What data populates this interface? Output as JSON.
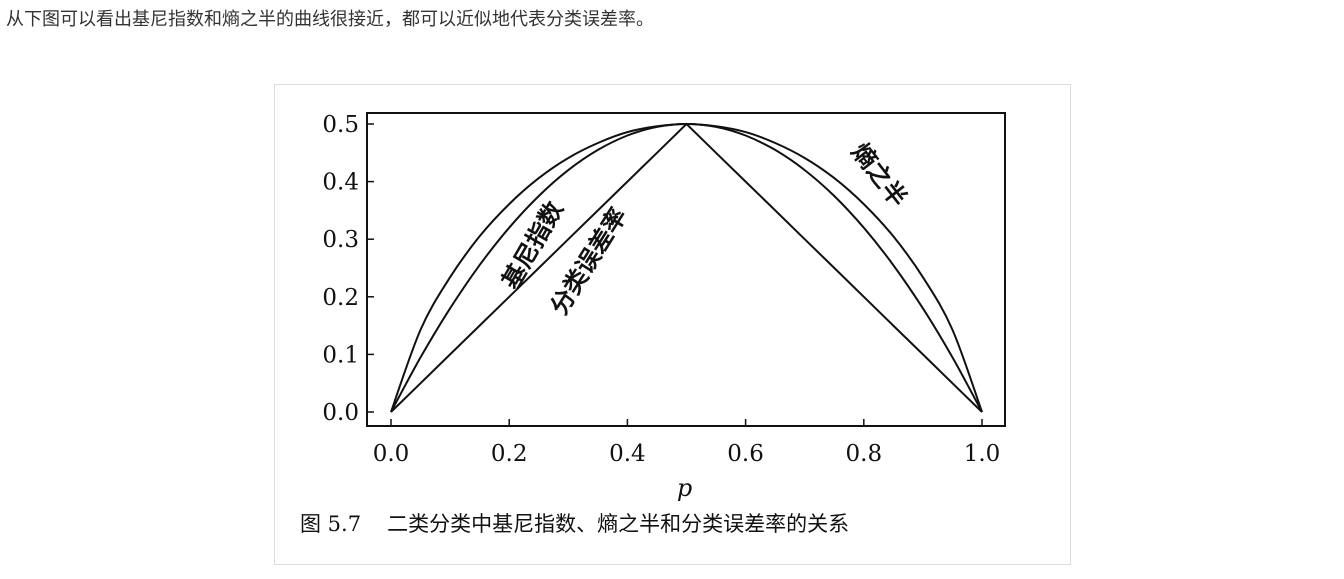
{
  "intro_text": "从下图可以看出基尼指数和熵之半的曲线很接近，都可以近似地代表分类误差率。",
  "figure": {
    "number": "图 5.7",
    "caption": "二类分类中基尼指数、熵之半和分类误差率的关系"
  },
  "chart_data": {
    "type": "line",
    "xlabel": "p",
    "ylabel": "",
    "xlim": [
      0.0,
      1.0
    ],
    "ylim": [
      0.0,
      0.5
    ],
    "xticks": [
      "0.0",
      "0.2",
      "0.4",
      "0.6",
      "0.8",
      "1.0"
    ],
    "yticks": [
      "0.0",
      "0.1",
      "0.2",
      "0.3",
      "0.4",
      "0.5"
    ],
    "grid": false,
    "legend": "none",
    "line_color": "#111111",
    "x": [
      0.0,
      0.05,
      0.1,
      0.15,
      0.2,
      0.25,
      0.3,
      0.35,
      0.4,
      0.45,
      0.5,
      0.55,
      0.6,
      0.65,
      0.7,
      0.75,
      0.8,
      0.85,
      0.9,
      0.95,
      1.0
    ],
    "series": [
      {
        "name": "熵之半",
        "values": [
          0.0,
          0.143,
          0.234,
          0.305,
          0.361,
          0.406,
          0.441,
          0.467,
          0.486,
          0.496,
          0.5,
          0.496,
          0.486,
          0.467,
          0.441,
          0.406,
          0.361,
          0.305,
          0.234,
          0.143,
          0.0
        ]
      },
      {
        "name": "基尼指数",
        "values": [
          0.0,
          0.095,
          0.18,
          0.255,
          0.32,
          0.375,
          0.42,
          0.455,
          0.48,
          0.495,
          0.5,
          0.495,
          0.48,
          0.455,
          0.42,
          0.375,
          0.32,
          0.255,
          0.18,
          0.095,
          0.0
        ]
      },
      {
        "name": "分类误差率",
        "values": [
          0.0,
          0.05,
          0.1,
          0.15,
          0.2,
          0.25,
          0.3,
          0.35,
          0.4,
          0.45,
          0.5,
          0.45,
          0.4,
          0.35,
          0.3,
          0.25,
          0.2,
          0.15,
          0.1,
          0.05,
          0.0
        ]
      }
    ]
  }
}
